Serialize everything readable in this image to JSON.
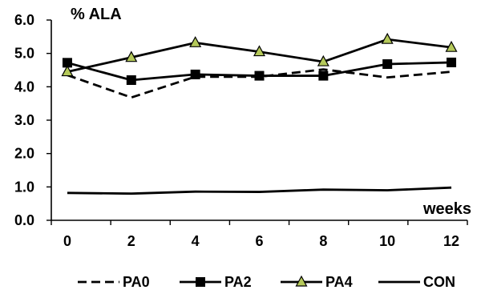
{
  "chart_data": {
    "type": "line",
    "title": "",
    "xlabel": "weeks",
    "ylabel": "% ALA",
    "x": [
      0,
      2,
      4,
      6,
      8,
      10,
      12
    ],
    "x_tick_labels": [
      "0",
      "2",
      "4",
      "6",
      "8",
      "10",
      "12"
    ],
    "y_tick_labels": [
      "0.0",
      "1.0",
      "2.0",
      "3.0",
      "4.0",
      "5.0",
      "6.0"
    ],
    "ylim": [
      0,
      6
    ],
    "grid": false,
    "legend_placement": "bottom",
    "series": [
      {
        "name": "PA0",
        "values": [
          4.35,
          3.68,
          4.3,
          4.3,
          4.52,
          4.28,
          4.45
        ],
        "color": "#000000",
        "line": "dashed",
        "marker": "none"
      },
      {
        "name": "PA2",
        "values": [
          4.72,
          4.2,
          4.37,
          4.33,
          4.33,
          4.68,
          4.73
        ],
        "color": "#000000",
        "line": "solid",
        "marker": "square"
      },
      {
        "name": "PA4",
        "values": [
          4.45,
          4.88,
          5.32,
          5.05,
          4.75,
          5.42,
          5.18
        ],
        "color": "#000000",
        "line": "solid",
        "marker": "triangle",
        "marker_fill": "#b5c95a"
      },
      {
        "name": "CON",
        "values": [
          0.82,
          0.8,
          0.86,
          0.85,
          0.92,
          0.9,
          0.98
        ],
        "color": "#000000",
        "line": "solid",
        "marker": "none"
      }
    ]
  }
}
